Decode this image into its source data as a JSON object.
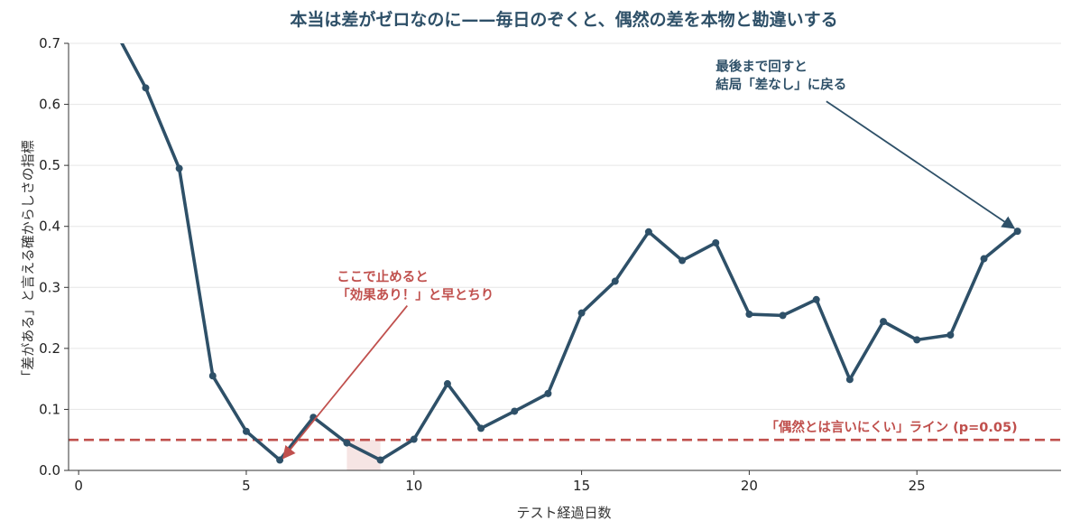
{
  "chart_data": {
    "type": "line",
    "title": "本当は差がゼロなのに——毎日のぞくと、偶然の差を本物と勘違いする",
    "xlabel": "テスト経過日数",
    "ylabel": "「差がある」と言える確からしさの指標",
    "xlim": [
      -0.3,
      29.3
    ],
    "ylim": [
      0,
      0.7
    ],
    "xticks": [
      0,
      5,
      10,
      15,
      20,
      25
    ],
    "yticks": [
      0.0,
      0.1,
      0.2,
      0.3,
      0.4,
      0.5,
      0.6,
      0.7
    ],
    "grid": "horizontal",
    "series": [
      {
        "color": "#2e5068",
        "points": [
          {
            "x": 1,
            "y": 0.73
          },
          {
            "x": 2,
            "y": 0.627
          },
          {
            "x": 3,
            "y": 0.495
          },
          {
            "x": 4,
            "y": 0.155
          },
          {
            "x": 5,
            "y": 0.064
          },
          {
            "x": 6,
            "y": 0.017
          },
          {
            "x": 7,
            "y": 0.087
          },
          {
            "x": 8,
            "y": 0.045
          },
          {
            "x": 9,
            "y": 0.017
          },
          {
            "x": 10,
            "y": 0.051
          },
          {
            "x": 11,
            "y": 0.142
          },
          {
            "x": 12,
            "y": 0.069
          },
          {
            "x": 13,
            "y": 0.097
          },
          {
            "x": 14,
            "y": 0.126
          },
          {
            "x": 15,
            "y": 0.258
          },
          {
            "x": 16,
            "y": 0.31
          },
          {
            "x": 17,
            "y": 0.391
          },
          {
            "x": 18,
            "y": 0.344
          },
          {
            "x": 19,
            "y": 0.373
          },
          {
            "x": 20,
            "y": 0.256
          },
          {
            "x": 21,
            "y": 0.254
          },
          {
            "x": 22,
            "y": 0.28
          },
          {
            "x": 23,
            "y": 0.149
          },
          {
            "x": 24,
            "y": 0.244
          },
          {
            "x": 25,
            "y": 0.214
          },
          {
            "x": 26,
            "y": 0.222
          },
          {
            "x": 27,
            "y": 0.347
          },
          {
            "x": 28,
            "y": 0.392
          }
        ]
      }
    ],
    "threshold": {
      "y": 0.05,
      "label": "「偶然とは言いにくい」ライン (p=0.05)",
      "color": "#c0504d"
    },
    "shaded_band": {
      "x_from": 8,
      "x_to": 9,
      "y_to": 0.05,
      "color": "#c0504d"
    },
    "annotations": [
      {
        "id": "early-stop",
        "lines": [
          "ここで止めると",
          "「効果あり！」と早とちり"
        ],
        "color": "#c0504d",
        "text_x": 7.7,
        "text_y": 0.31,
        "arrow_from": {
          "x": 9.8,
          "y": 0.27
        },
        "arrow_to": {
          "x": 6.1,
          "y": 0.02
        }
      },
      {
        "id": "full-run",
        "lines": [
          "最後まで回すと",
          "結局「差なし」に戻る"
        ],
        "color": "#2e5068",
        "text_x": 19.0,
        "text_y": 0.655,
        "arrow_from": {
          "x": 22.3,
          "y": 0.605
        },
        "arrow_to": {
          "x": 27.9,
          "y": 0.397
        }
      }
    ]
  }
}
